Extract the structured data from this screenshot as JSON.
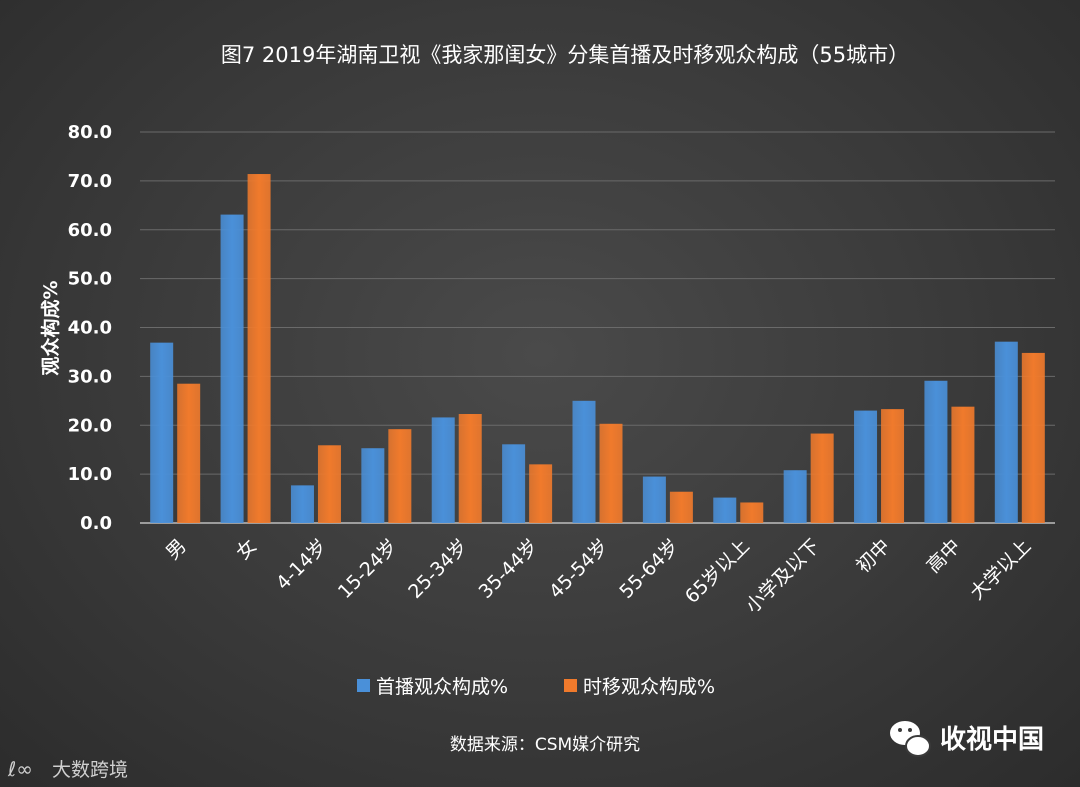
{
  "chart_data": {
    "type": "bar",
    "title": "图7    2019年湖南卫视《我家那闺女》分集首播及时移观众构成（55城市）",
    "xlabel": "",
    "ylabel": "观众构成%",
    "ylim": [
      0,
      80
    ],
    "yticks": [
      "0.0",
      "10.0",
      "20.0",
      "30.0",
      "40.0",
      "50.0",
      "60.0",
      "70.0",
      "80.0"
    ],
    "grid": true,
    "legend_position": "bottom",
    "categories": [
      "男",
      "女",
      "4-14岁",
      "15-24岁",
      "25-34岁",
      "35-44岁",
      "45-54岁",
      "55-64岁",
      "65岁以上",
      "小学及以下",
      "初中",
      "高中",
      "大学以上"
    ],
    "series": [
      {
        "name": "首播观众构成%",
        "color": "#4a90d9",
        "values": [
          36.9,
          63.1,
          7.7,
          15.3,
          21.6,
          16.1,
          25.0,
          9.5,
          5.2,
          10.8,
          23.0,
          29.1,
          37.1
        ]
      },
      {
        "name": "时移观众构成%",
        "color": "#f07a2c",
        "values": [
          28.5,
          71.4,
          15.9,
          19.2,
          22.3,
          12.0,
          20.3,
          6.4,
          4.2,
          18.3,
          23.3,
          23.8,
          34.8
        ]
      }
    ],
    "source": "数据来源：CSM媒介研究"
  },
  "watermark": {
    "brand": "收视中国",
    "brand_icon": "wechat-icon",
    "corner_text": "大数跨境"
  }
}
